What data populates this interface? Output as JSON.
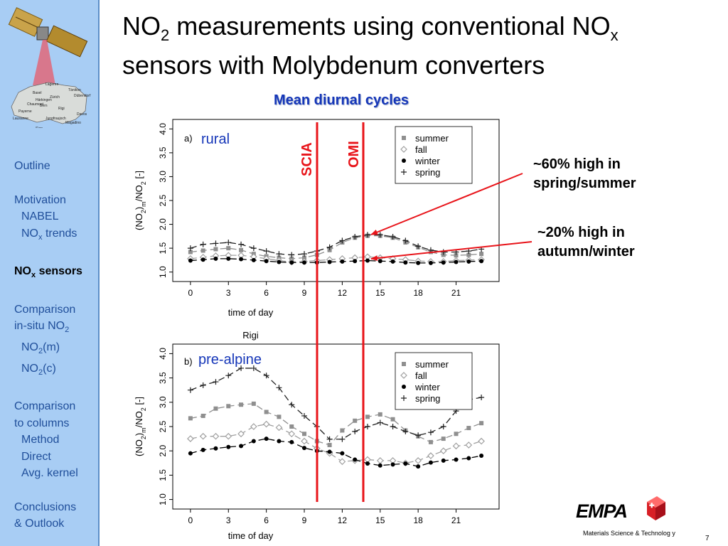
{
  "sidebar": {
    "logo_labels": [
      "Lägeren",
      "Tänikon",
      "Basel",
      "Dübendorf",
      "Zürich",
      "Härkingen",
      "Chaumont",
      "Bern",
      "Rigi",
      "Payerne",
      "Davos",
      "Lausanne",
      "Jungfraujoch",
      "Magadino",
      "Sion",
      "Lugano",
      "50km"
    ],
    "nav": [
      {
        "text": "Outline",
        "level": 0,
        "gap_before": false,
        "active": false
      },
      {
        "text": "Motivation",
        "level": 0,
        "gap_before": true,
        "active": false
      },
      {
        "text": "NABEL",
        "level": 1,
        "gap_before": false,
        "active": false
      },
      {
        "text": "NO",
        "sub": "x",
        "suffix": " trends",
        "level": 1,
        "gap_before": false,
        "active": false
      },
      {
        "text": "NO",
        "sub": "x",
        "suffix": " sensors",
        "level": 0,
        "gap_before": true,
        "active": true
      },
      {
        "text": "Comparison",
        "level": 0,
        "gap_before": true,
        "active": false
      },
      {
        "text": "in-situ NO",
        "sub": "2",
        "suffix": "",
        "level": 0,
        "gap_before": false,
        "active": false
      },
      {
        "text": "NO",
        "sub": "2",
        "suffix": "(m)",
        "level": 1,
        "gap_before": false,
        "active": false
      },
      {
        "text": "NO",
        "sub": "2",
        "suffix": "(c)",
        "level": 1,
        "gap_before": false,
        "active": false
      },
      {
        "text": "Comparison",
        "level": 0,
        "gap_before": true,
        "active": false
      },
      {
        "text": "to columns",
        "level": 0,
        "gap_before": false,
        "active": false
      },
      {
        "text": "Method",
        "level": 1,
        "gap_before": false,
        "active": false
      },
      {
        "text": "Direct",
        "level": 1,
        "gap_before": false,
        "active": false
      },
      {
        "text": "Avg. kernel",
        "level": 1,
        "gap_before": false,
        "active": false
      },
      {
        "text": "Conclusions",
        "level": 0,
        "gap_before": true,
        "active": false
      },
      {
        "text": "& Outlook",
        "level": 0,
        "gap_before": false,
        "active": false
      }
    ]
  },
  "title": {
    "line1_a": "NO",
    "line1_sub": "2",
    "line1_b": " measurements using conventional NO",
    "line1_sub2": "x",
    "line2": "sensors with Molybdenum converters"
  },
  "subheading": "Mean diurnal cycles",
  "annotations": {
    "scia": "SCIA",
    "omi": "OMI",
    "callout1_line1": "~60% high in",
    "callout1_line2": "spring/summer",
    "callout2_line1": "~20% high in",
    "callout2_line2": "autumn/winter"
  },
  "colors": {
    "accent_blue": "#1536b8",
    "red": "#e8141a",
    "sidebar": "#a8cdf4",
    "summer": "#8f8f8f",
    "fall": "#a0a0a0",
    "winter": "#000000",
    "spring": "#222222"
  },
  "footer": {
    "brand": "EMPA",
    "tagline": "Materials Science & Technolog y",
    "page": "7"
  },
  "chart_data": [
    {
      "type": "line",
      "panel": "a)",
      "station_label": "rural",
      "caption_below": "Rigi",
      "xlabel": "time of day",
      "ylabel_parts": [
        "(NO",
        "2",
        ")",
        "m",
        "/NO",
        "2",
        " [-]"
      ],
      "xticks": [
        0,
        3,
        6,
        9,
        12,
        15,
        18,
        21
      ],
      "yticks": [
        "1.0",
        "1.5",
        "2.0",
        "2.5",
        "3.0",
        "3.5",
        "4.0"
      ],
      "xlim": [
        -0.5,
        23.5
      ],
      "ylim": [
        0.95,
        4.05
      ],
      "x": [
        0,
        1,
        2,
        3,
        4,
        5,
        6,
        7,
        8,
        9,
        10,
        11,
        12,
        13,
        14,
        15,
        16,
        17,
        18,
        19,
        20,
        21,
        22,
        23
      ],
      "series": [
        {
          "name": "summer",
          "marker": "square",
          "values": [
            1.42,
            1.45,
            1.48,
            1.5,
            1.46,
            1.38,
            1.33,
            1.3,
            1.28,
            1.3,
            1.36,
            1.46,
            1.62,
            1.72,
            1.76,
            1.76,
            1.72,
            1.62,
            1.52,
            1.42,
            1.36,
            1.35,
            1.36,
            1.38
          ]
        },
        {
          "name": "fall",
          "marker": "diamond",
          "values": [
            1.28,
            1.31,
            1.34,
            1.35,
            1.35,
            1.32,
            1.28,
            1.24,
            1.21,
            1.22,
            1.24,
            1.26,
            1.28,
            1.3,
            1.32,
            1.3,
            1.28,
            1.26,
            1.23,
            1.22,
            1.22,
            1.24,
            1.25,
            1.26
          ]
        },
        {
          "name": "winter",
          "marker": "circle",
          "values": [
            1.24,
            1.26,
            1.28,
            1.28,
            1.27,
            1.25,
            1.23,
            1.21,
            1.2,
            1.2,
            1.2,
            1.21,
            1.22,
            1.23,
            1.24,
            1.23,
            1.22,
            1.2,
            1.19,
            1.19,
            1.2,
            1.21,
            1.22,
            1.23
          ]
        },
        {
          "name": "spring",
          "marker": "plus",
          "values": [
            1.5,
            1.58,
            1.6,
            1.62,
            1.58,
            1.5,
            1.44,
            1.38,
            1.36,
            1.38,
            1.44,
            1.52,
            1.66,
            1.74,
            1.78,
            1.78,
            1.74,
            1.66,
            1.54,
            1.46,
            1.42,
            1.42,
            1.44,
            1.48
          ]
        }
      ]
    },
    {
      "type": "line",
      "panel": "b)",
      "station_label": "pre-alpine",
      "xlabel": "time of day",
      "ylabel_parts": [
        "(NO",
        "2",
        ")",
        "m",
        "/NO",
        "2",
        " [-]"
      ],
      "xticks": [
        0,
        3,
        6,
        9,
        12,
        15,
        18,
        21
      ],
      "yticks": [
        "1.0",
        "1.5",
        "2.0",
        "2.5",
        "3.0",
        "3.5",
        "4.0"
      ],
      "xlim": [
        -0.5,
        23.5
      ],
      "ylim": [
        0.95,
        4.05
      ],
      "x": [
        0,
        1,
        2,
        3,
        4,
        5,
        6,
        7,
        8,
        9,
        10,
        11,
        12,
        13,
        14,
        15,
        16,
        17,
        18,
        19,
        20,
        21,
        22,
        23
      ],
      "series": [
        {
          "name": "summer",
          "marker": "square",
          "values": [
            2.67,
            2.72,
            2.87,
            2.92,
            2.95,
            2.97,
            2.8,
            2.7,
            2.5,
            2.35,
            2.2,
            2.12,
            2.42,
            2.62,
            2.7,
            2.75,
            2.65,
            2.42,
            2.3,
            2.18,
            2.25,
            2.35,
            2.47,
            2.57
          ]
        },
        {
          "name": "fall",
          "marker": "diamond",
          "values": [
            2.25,
            2.3,
            2.3,
            2.3,
            2.35,
            2.5,
            2.55,
            2.48,
            2.35,
            2.2,
            2.05,
            1.95,
            1.78,
            1.8,
            1.82,
            1.8,
            1.8,
            1.75,
            1.8,
            1.9,
            2.0,
            2.1,
            2.12,
            2.2
          ]
        },
        {
          "name": "winter",
          "marker": "circle",
          "values": [
            1.95,
            2.02,
            2.05,
            2.08,
            2.1,
            2.2,
            2.25,
            2.2,
            2.18,
            2.06,
            2.0,
            1.98,
            1.95,
            1.82,
            1.74,
            1.7,
            1.72,
            1.74,
            1.68,
            1.76,
            1.8,
            1.82,
            1.85,
            1.9
          ]
        },
        {
          "name": "spring",
          "marker": "plus",
          "values": [
            3.25,
            3.35,
            3.42,
            3.55,
            3.7,
            3.7,
            3.55,
            3.3,
            2.95,
            2.72,
            2.5,
            2.24,
            2.24,
            2.4,
            2.5,
            2.58,
            2.5,
            2.4,
            2.32,
            2.38,
            2.5,
            2.82,
            3.05,
            3.1
          ]
        }
      ]
    }
  ]
}
